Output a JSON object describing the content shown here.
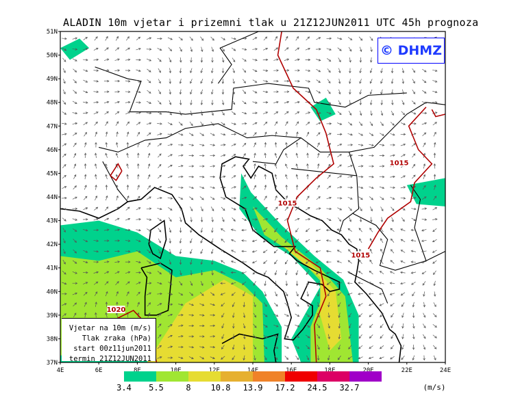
{
  "title": "ALADIN 10m vjetar i prizemni tlak u 21Z12JUN2011 UTC 45h prognoza",
  "logo": "© DHMZ",
  "axes": {
    "lat_labels": [
      "37N",
      "38N",
      "39N",
      "40N",
      "41N",
      "42N",
      "43N",
      "44N",
      "45N",
      "46N",
      "47N",
      "48N",
      "49N",
      "50N",
      "51N"
    ],
    "lon_labels": [
      "4E",
      "6E",
      "8E",
      "10E",
      "12E",
      "14E",
      "16E",
      "18E",
      "20E",
      "22E",
      "24E"
    ]
  },
  "info_box": [
    "Vjetar na 10m (m/s)",
    "Tlak zraka (hPa)",
    "start 00z11jun2011",
    "termin 21Z12JUN2011"
  ],
  "isobar_labels": [
    "1015",
    "1015",
    "1015",
    "1020"
  ],
  "legend": {
    "colors": [
      "#00d28c",
      "#a0e632",
      "#e6dc32",
      "#e6b030",
      "#f08228",
      "#f00000",
      "#dc0064",
      "#a000c8"
    ],
    "values": [
      "3.4",
      "5.5",
      "8",
      "10.8",
      "13.9",
      "17.2",
      "24.5",
      "32.7"
    ],
    "unit": "(m/s)"
  }
}
